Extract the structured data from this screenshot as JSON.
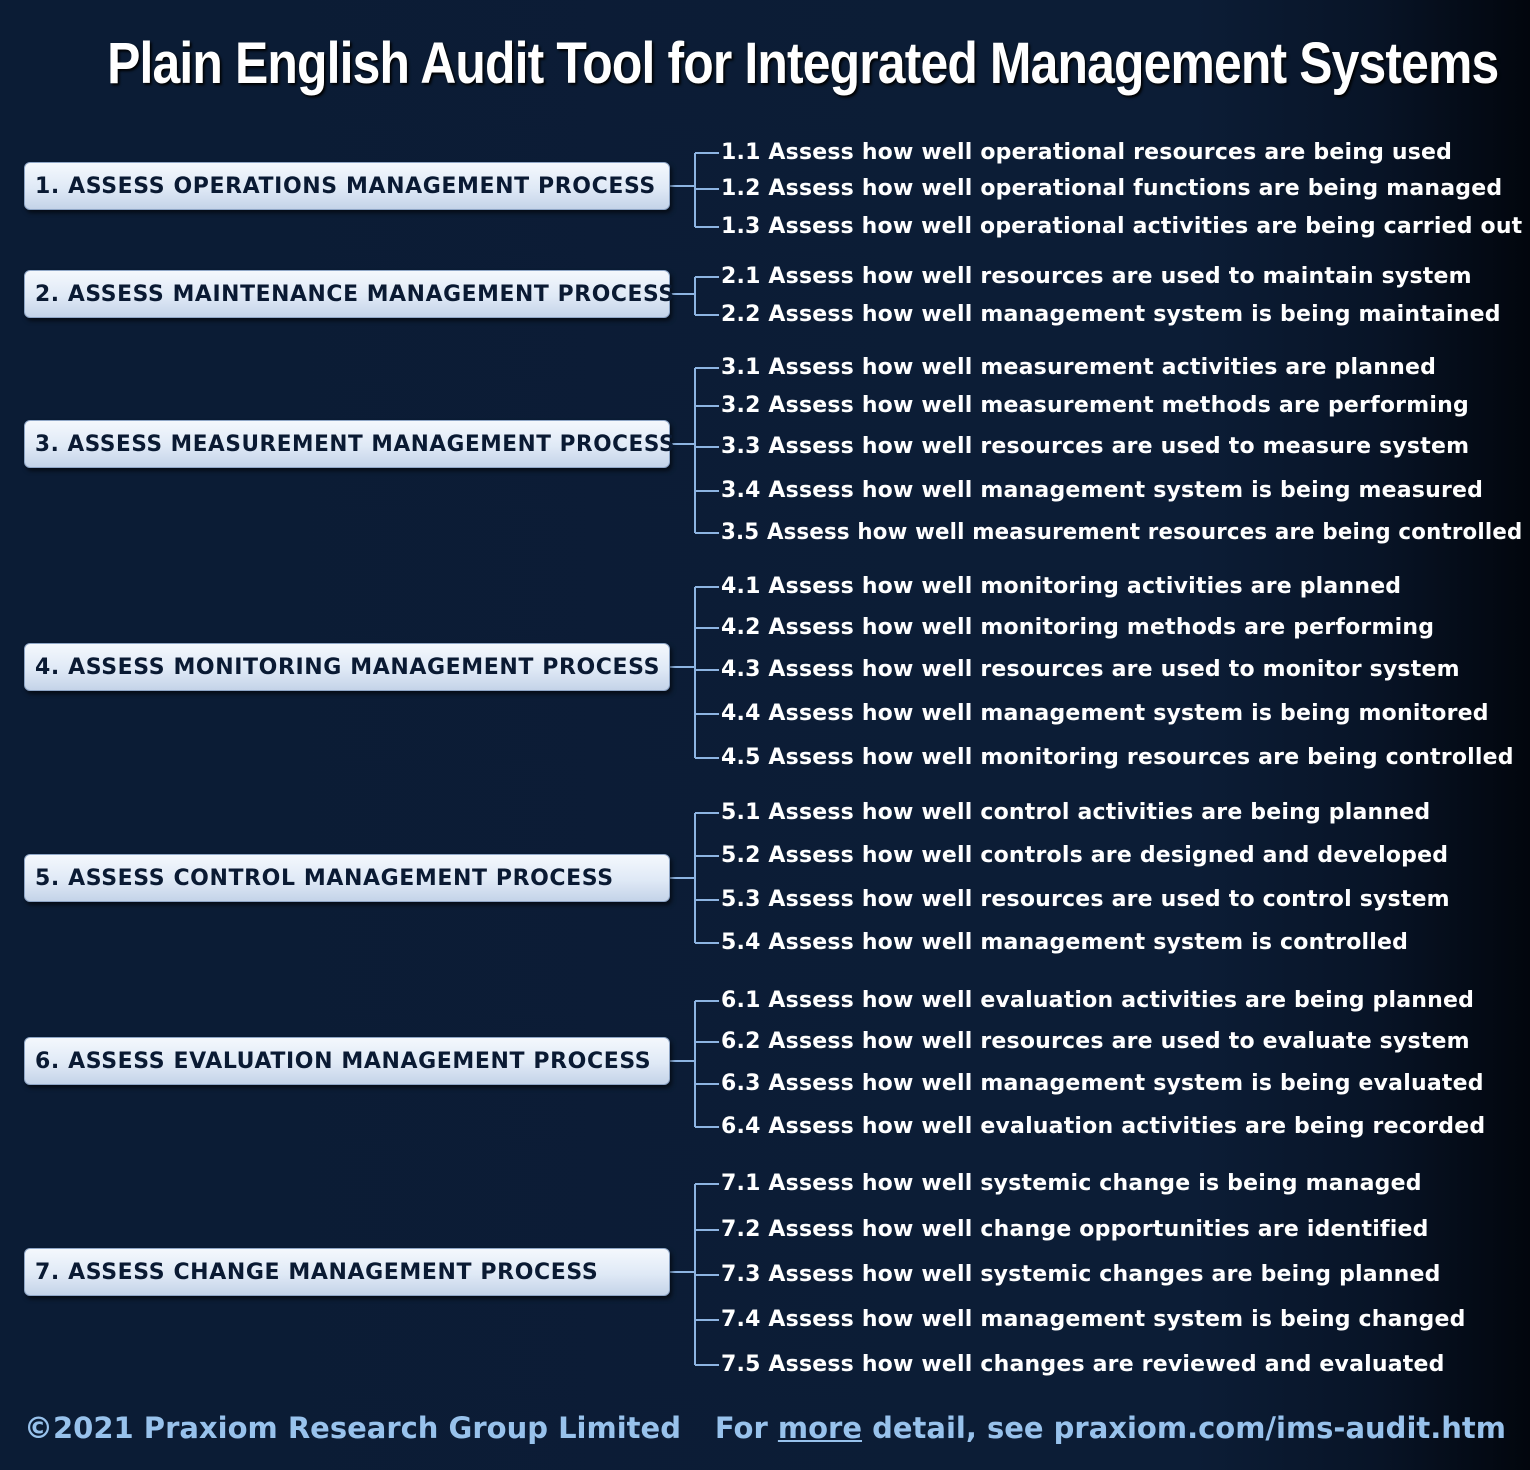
{
  "title": "Plain English Audit Tool for Integrated Management Systems",
  "colors": {
    "background": "#0c1d36",
    "connector": "#8db4e2",
    "box_text": "#0a1a33",
    "footer": "#98c2ec"
  },
  "processes": [
    {
      "label": "1. ASSESS OPERATIONS MANAGEMENT PROCESS",
      "items": [
        "1.1 Assess how well operational resources are being used",
        "1.2 Assess how well operational functions are being managed",
        "1.3 Assess how well operational activities are being carried out"
      ]
    },
    {
      "label": "2. ASSESS MAINTENANCE MANAGEMENT PROCESS",
      "items": [
        "2.1 Assess how well resources are used to maintain system",
        "2.2 Assess how well management system is being maintained"
      ]
    },
    {
      "label": "3. ASSESS MEASUREMENT MANAGEMENT PROCESS",
      "items": [
        "3.1 Assess how well measurement activities are planned",
        "3.2 Assess how well measurement methods are performing",
        "3.3 Assess how well resources are used to measure system",
        "3.4 Assess how well management system is being measured",
        "3.5 Assess how well measurement resources are being controlled"
      ]
    },
    {
      "label": "4. ASSESS MONITORING MANAGEMENT PROCESS",
      "items": [
        "4.1 Assess how well monitoring activities are planned",
        "4.2 Assess how well monitoring methods are performing",
        "4.3 Assess how well resources are used to monitor system",
        "4.4 Assess how well management system is being monitored",
        "4.5 Assess how well monitoring resources are being controlled"
      ]
    },
    {
      "label": "5. ASSESS CONTROL MANAGEMENT PROCESS",
      "items": [
        "5.1 Assess how well control activities are being planned",
        "5.2 Assess how well controls are designed and developed",
        "5.3 Assess how well resources are used to control system",
        "5.4 Assess how well management system is controlled"
      ]
    },
    {
      "label": "6. ASSESS EVALUATION MANAGEMENT PROCESS",
      "items": [
        "6.1 Assess how well evaluation activities are being planned",
        "6.2 Assess how well resources are used to evaluate system",
        "6.3 Assess how well management system is being evaluated",
        "6.4 Assess how well evaluation activities are being recorded"
      ]
    },
    {
      "label": "7. ASSESS CHANGE MANAGEMENT PROCESS",
      "items": [
        "7.1 Assess how well systemic change is being managed",
        "7.2 Assess how well change opportunities are identified",
        "7.3 Assess how well systemic changes are being planned",
        "7.4 Assess how well management system is being changed",
        "7.5 Assess how well changes are reviewed and evaluated"
      ]
    }
  ],
  "footer": {
    "copyright": "©2021 Praxiom Research Group Limited",
    "detail_prefix": "For ",
    "detail_link": "more",
    "detail_suffix": " detail, see praxiom.com/ims-audit.htm"
  }
}
